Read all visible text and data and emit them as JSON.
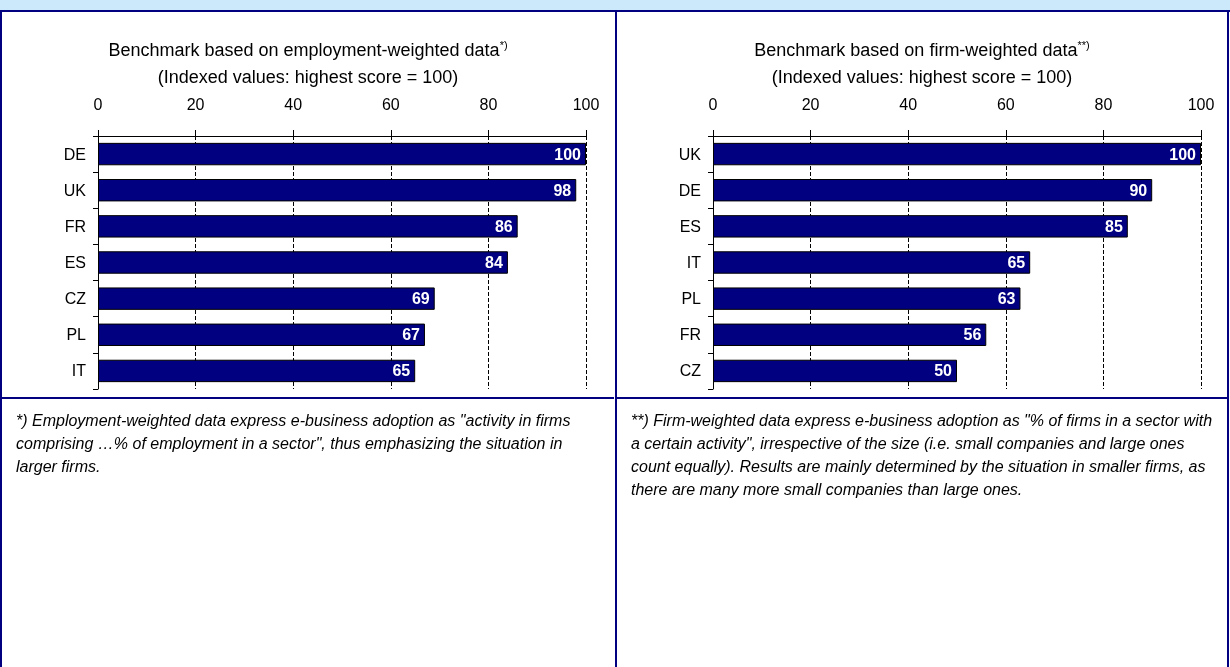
{
  "chart_data": [
    {
      "type": "bar",
      "orientation": "horizontal",
      "title": "Benchmark based on employment-weighted data$^{*)}$",
      "subtitle": "(Indexed values: highest score = 100)",
      "categories": [
        "DE",
        "UK",
        "FR",
        "ES",
        "CZ",
        "PL",
        "IT"
      ],
      "values": [
        100,
        98,
        86,
        84,
        69,
        67,
        65
      ],
      "color": "#000080",
      "xlim": [
        0,
        100
      ],
      "xticks": [
        0,
        20,
        40,
        60,
        80,
        100
      ],
      "grid": "x",
      "data_labels": true,
      "annotations": [
        "*) Employment-weighted data express e-business adoption as \"activity in firms comprising …% of employment in a sector\", thus emphasizing the situation in larger firms."
      ]
    },
    {
      "type": "bar",
      "orientation": "horizontal",
      "title": "Benchmark based on firm-weighted data$^{**)}$",
      "subtitle": "(Indexed values: highest score = 100)",
      "categories": [
        "UK",
        "DE",
        "ES",
        "IT",
        "PL",
        "FR",
        "CZ"
      ],
      "values": [
        100,
        90,
        85,
        65,
        63,
        56,
        50
      ],
      "color": "#000080",
      "xlim": [
        0,
        100
      ],
      "xticks": [
        0,
        20,
        40,
        60,
        80,
        100
      ],
      "grid": "x",
      "data_labels": true,
      "annotations": [
        "**) Firm-weighted data express e-business adoption as \"% of firms in a sector with a certain activity\", irrespective of the size (i.e. small companies and large ones count equally). Results are mainly determined by the situation in smaller firms, as there are many more small companies than large ones."
      ]
    }
  ]
}
